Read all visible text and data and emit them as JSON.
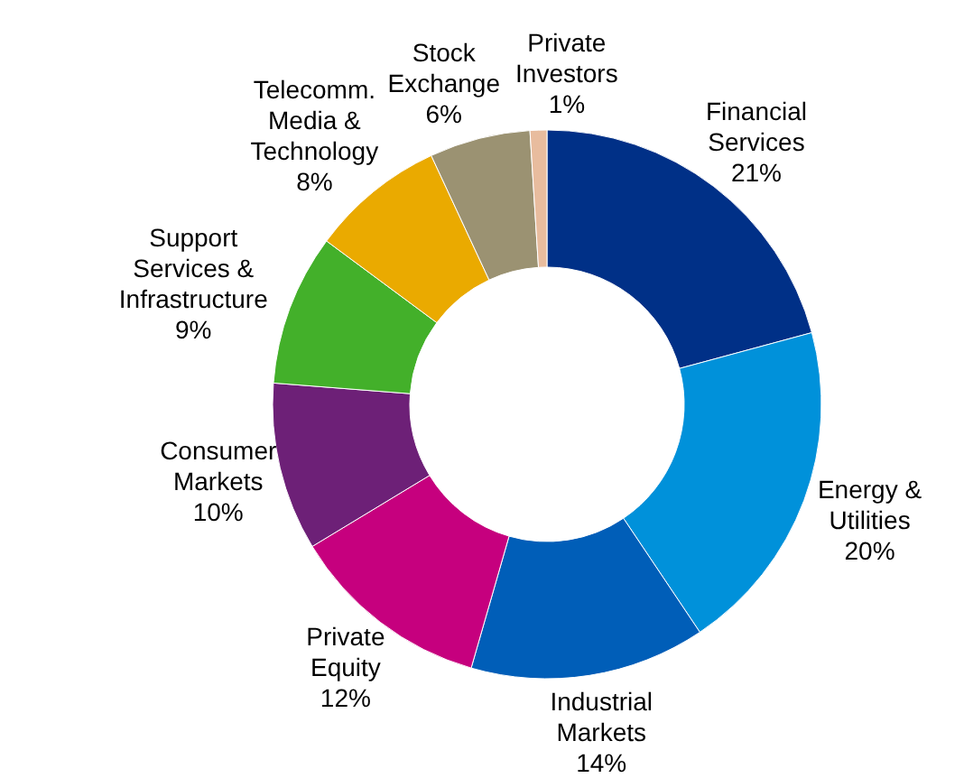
{
  "chart_data": {
    "type": "donut",
    "categories": [
      "Financial Services",
      "Energy & Utilities",
      "Industrial Markets",
      "Private Equity",
      "Consumer Markets",
      "Support Services & Infrastructure",
      "Telecomm. Media & Technology",
      "Stock Exchange",
      "Private Investors"
    ],
    "values": [
      21,
      20,
      14,
      12,
      10,
      9,
      8,
      6,
      1
    ],
    "value_labels": [
      "21%",
      "20%",
      "14%",
      "12%",
      "10%",
      "9%",
      "8%",
      "6%",
      "1%"
    ],
    "colors": [
      "#003087",
      "#0091da",
      "#005eb8",
      "#c6007e",
      "#6d2077",
      "#43b02a",
      "#eaaa00",
      "#9b9272",
      "#e8bc9e"
    ],
    "legend": false
  }
}
